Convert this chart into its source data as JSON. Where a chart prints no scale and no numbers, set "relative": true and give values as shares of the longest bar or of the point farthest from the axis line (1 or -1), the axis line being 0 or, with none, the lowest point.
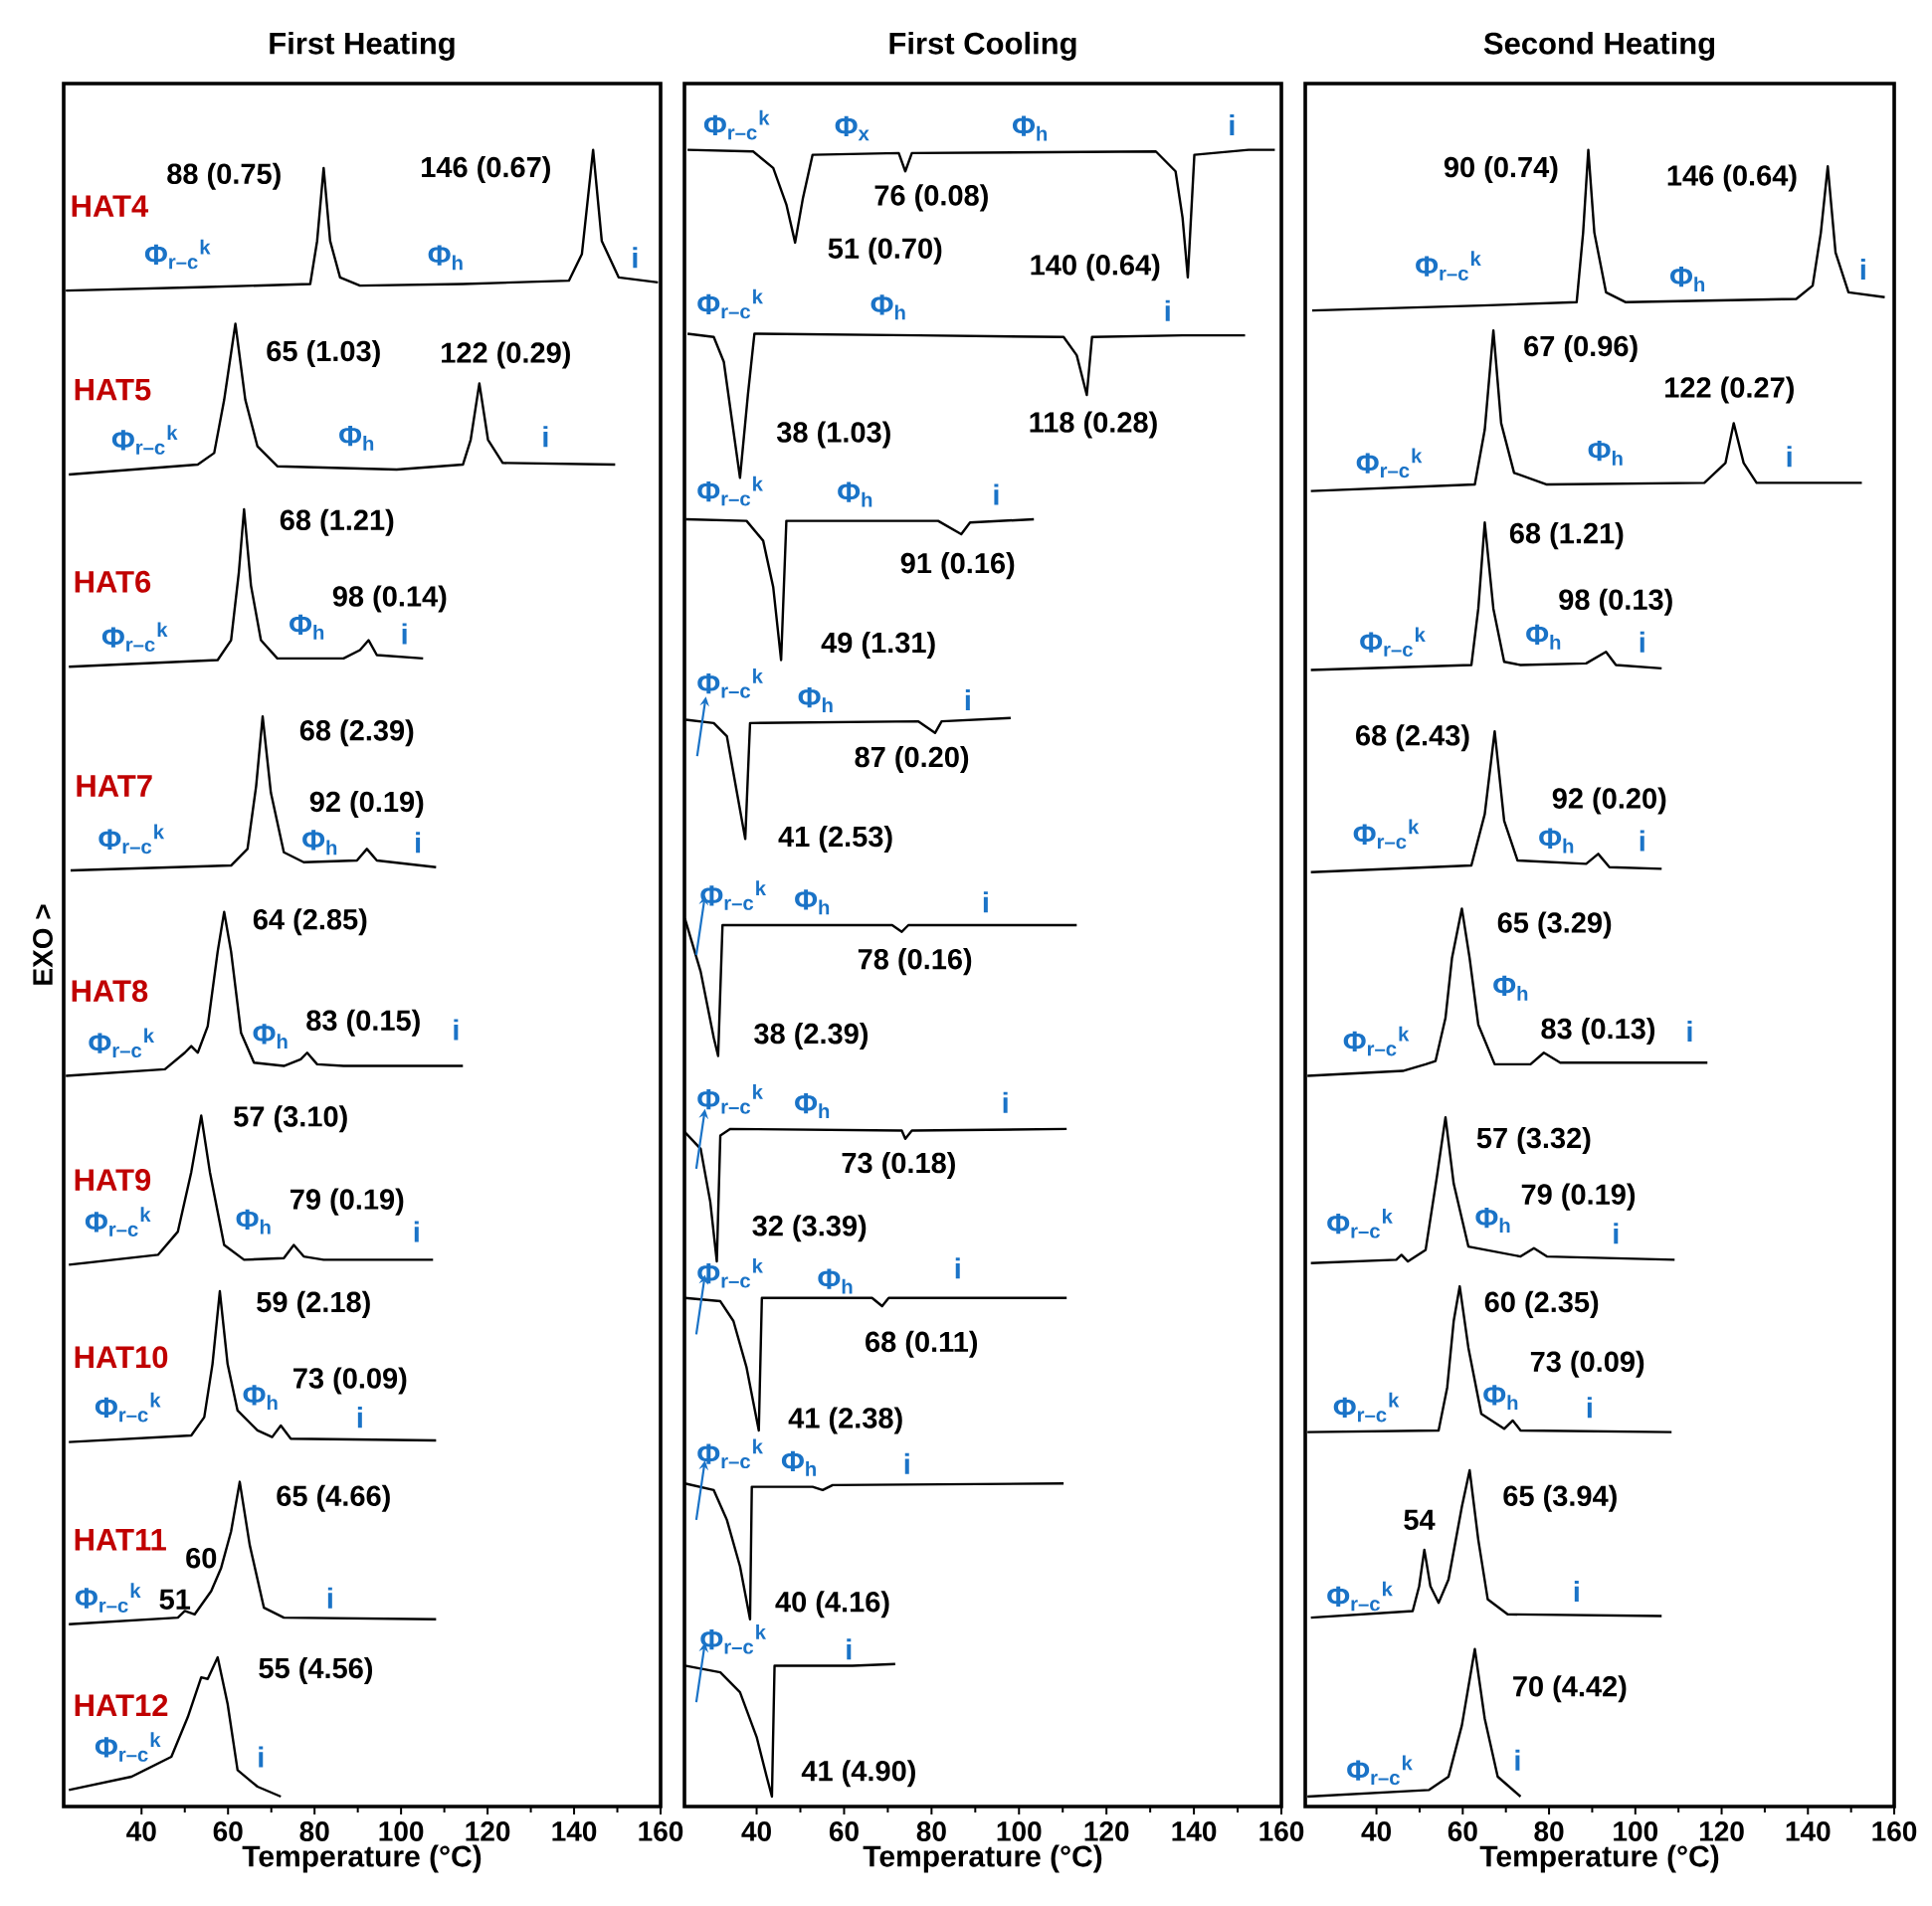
{
  "chart_data": [
    {
      "type": "line",
      "title": "First Heating",
      "xlabel": "Temperature (°C)",
      "ylabel": "EXO >",
      "relative": true,
      "xlim": [
        22,
        160
      ],
      "xticks": [
        40,
        60,
        80,
        100,
        120,
        140,
        160
      ],
      "series": [
        {
          "name": "HAT4",
          "color": "#000000",
          "x": [
            22.5,
            53.0,
            79.0,
            80.6,
            82.1,
            83.6,
            85.9,
            90.5,
            114.3,
            138.8,
            141.8,
            144.4,
            146.4,
            150.3,
            159.4
          ],
          "values": [
            0.915,
            0.917,
            0.919,
            0.945,
            0.989,
            0.945,
            0.923,
            0.918,
            0.919,
            0.921,
            0.937,
            1.0,
            0.945,
            0.923,
            0.92
          ]
        },
        {
          "name": "HAT5",
          "color": "#000000",
          "x": [
            23.2,
            53.0,
            56.8,
            59.1,
            61.7,
            64.0,
            66.8,
            71.4,
            99.0,
            114.3,
            116.1,
            118.1,
            120.1,
            123.5,
            149.5
          ],
          "values": [
            0.804,
            0.81,
            0.817,
            0.849,
            0.895,
            0.849,
            0.821,
            0.809,
            0.807,
            0.81,
            0.825,
            0.859,
            0.825,
            0.811,
            0.81
          ]
        },
        {
          "name": "HAT6",
          "color": "#000000",
          "x": [
            23.2,
            57.6,
            60.7,
            62.5,
            63.7,
            65.3,
            67.6,
            71.4,
            86.7,
            90.5,
            92.5,
            94.4,
            105.1
          ],
          "values": [
            0.688,
            0.692,
            0.704,
            0.745,
            0.783,
            0.737,
            0.704,
            0.693,
            0.693,
            0.698,
            0.704,
            0.695,
            0.693
          ]
        },
        {
          "name": "HAT7",
          "color": "#000000",
          "x": [
            23.6,
            60.7,
            64.5,
            66.5,
            68.0,
            69.9,
            72.9,
            77.5,
            89.8,
            92.1,
            94.4,
            108.1
          ],
          "values": [
            0.565,
            0.568,
            0.578,
            0.616,
            0.658,
            0.612,
            0.576,
            0.57,
            0.571,
            0.578,
            0.571,
            0.567
          ]
        },
        {
          "name": "HAT8",
          "color": "#000000",
          "x": [
            22.5,
            45.4,
            50.0,
            51.5,
            53.0,
            55.3,
            57.6,
            59.1,
            60.7,
            63.0,
            66.0,
            72.9,
            76.8,
            78.3,
            80.6,
            86.7,
            114.3
          ],
          "values": [
            0.441,
            0.445,
            0.455,
            0.459,
            0.455,
            0.471,
            0.516,
            0.54,
            0.516,
            0.467,
            0.449,
            0.447,
            0.451,
            0.455,
            0.448,
            0.447,
            0.447
          ]
        },
        {
          "name": "HAT9",
          "color": "#000000",
          "x": [
            23.2,
            43.8,
            48.4,
            51.5,
            53.8,
            55.8,
            59.1,
            63.7,
            72.9,
            75.2,
            77.5,
            82.1,
            107.4
          ],
          "values": [
            0.327,
            0.333,
            0.347,
            0.383,
            0.417,
            0.383,
            0.339,
            0.33,
            0.331,
            0.339,
            0.332,
            0.33,
            0.33
          ]
        },
        {
          "name": "HAT10",
          "color": "#000000",
          "x": [
            23.2,
            51.5,
            54.5,
            56.4,
            58.1,
            59.9,
            62.2,
            66.8,
            70.2,
            72.2,
            74.5,
            108.1
          ],
          "values": [
            0.22,
            0.224,
            0.235,
            0.267,
            0.311,
            0.267,
            0.239,
            0.227,
            0.223,
            0.23,
            0.222,
            0.221
          ]
        },
        {
          "name": "HAT11",
          "color": "#000000",
          "x": [
            23.2,
            48.4,
            50.0,
            52.3,
            56.1,
            58.4,
            60.7,
            62.7,
            65.0,
            68.3,
            72.9,
            108.1
          ],
          "values": [
            0.11,
            0.114,
            0.118,
            0.116,
            0.13,
            0.144,
            0.166,
            0.196,
            0.158,
            0.12,
            0.114,
            0.113
          ]
        },
        {
          "name": "HAT12",
          "color": "#000000",
          "x": [
            23.2,
            37.7,
            46.9,
            50.7,
            53.8,
            55.3,
            57.6,
            59.9,
            62.2,
            66.8,
            72.2
          ],
          "values": [
            0.01,
            0.018,
            0.03,
            0.054,
            0.078,
            0.077,
            0.09,
            0.062,
            0.022,
            0.012,
            0.006
          ]
        }
      ],
      "annotations": [
        "88 (0.75)",
        "146 (0.67)",
        "Φ$_{r–c}$$^{k}$",
        "Φ$_{h}$",
        "i",
        "65 (1.03)",
        "122 (0.29)",
        "Φ$_{r–c}$$^{k}$",
        "Φ$_{h}$",
        "i",
        "68 (1.21)",
        "98 (0.14)",
        "Φ$_{r–c}$$^{k}$",
        "Φ$_{h}$",
        "i",
        "68 (2.39)",
        "92 (0.19)",
        "Φ$_{r–c}$$^{k}$",
        "Φ$_{h}$",
        "i",
        "64 (2.85)",
        "Φ$_{r–c}$$^{k}$",
        "Φ$_{h}$",
        "83 (0.15)",
        "i",
        "57 (3.10)",
        "Φ$_{r–c}$$^{k}$",
        "Φ$_{h}$",
        "79 (0.19)",
        "i",
        "59 (2.18)",
        "73 (0.09)",
        "Φ$_{r–c}$$^{k}$",
        "Φ$_{h}$",
        "i",
        "65 (4.66)",
        "60",
        "Φ$_{r–c}$$^{k}$",
        "51",
        "i",
        "55 (4.56)",
        "Φ$_{r–c}$$^{k}$",
        "i"
      ]
    },
    {
      "type": "line",
      "title": "First Cooling",
      "xlabel": "Temperature (°C)",
      "relative": true,
      "xlim": [
        23.5,
        160
      ],
      "xticks": [
        40,
        60,
        80,
        100,
        120,
        140,
        160
      ],
      "series": [
        {
          "color": "#000000",
          "x": [
            24.2,
            39.2,
            43.8,
            46.8,
            48.8,
            50.6,
            52.8,
            72.5,
            74.0,
            75.5,
            131.3,
            135.8,
            137.4,
            138.6,
            140.1,
            152.5,
            158.5
          ],
          "values": [
            1.0,
            0.999,
            0.989,
            0.967,
            0.944,
            0.971,
            0.997,
            0.998,
            0.987,
            0.998,
            0.999,
            0.987,
            0.959,
            0.923,
            0.997,
            1.0,
            1.0
          ]
        },
        {
          "color": "#000000",
          "x": [
            24.2,
            30.2,
            32.5,
            34.4,
            36.2,
            38.0,
            39.5,
            77.0,
            110.2,
            113.2,
            115.5,
            116.7,
            137.4,
            151.7
          ],
          "values": [
            0.889,
            0.887,
            0.872,
            0.836,
            0.802,
            0.852,
            0.889,
            0.888,
            0.887,
            0.876,
            0.852,
            0.887,
            0.888,
            0.888
          ]
        },
        {
          "color": "#000000",
          "x": [
            23.8,
            37.7,
            41.5,
            43.8,
            45.6,
            46.8,
            81.5,
            86.8,
            88.8,
            103.4
          ],
          "values": [
            0.777,
            0.776,
            0.764,
            0.736,
            0.692,
            0.776,
            0.776,
            0.768,
            0.775,
            0.777
          ]
        },
        {
          "color": "#000000",
          "x": [
            23.8,
            30.2,
            33.2,
            35.5,
            37.4,
            38.5,
            77.0,
            80.8,
            82.3,
            98.1
          ],
          "values": [
            0.656,
            0.654,
            0.646,
            0.612,
            0.584,
            0.654,
            0.655,
            0.648,
            0.655,
            0.657
          ]
        },
        {
          "color": "#000000",
          "x": [
            23.6,
            27.2,
            30.2,
            31.2,
            32.2,
            71.0,
            73.2,
            74.7,
            113.2
          ],
          "values": [
            0.536,
            0.504,
            0.464,
            0.453,
            0.532,
            0.532,
            0.528,
            0.532,
            0.532
          ]
        },
        {
          "color": "#000000",
          "x": [
            23.6,
            27.2,
            29.4,
            30.9,
            31.7,
            34.0,
            73.2,
            74.0,
            75.5,
            110.9
          ],
          "values": [
            0.407,
            0.397,
            0.365,
            0.329,
            0.405,
            0.409,
            0.408,
            0.403,
            0.408,
            0.409
          ]
        },
        {
          "color": "#000000",
          "x": [
            23.6,
            31.7,
            34.7,
            37.7,
            40.5,
            41.2,
            66.4,
            68.7,
            70.2,
            110.9
          ],
          "values": [
            0.307,
            0.305,
            0.293,
            0.265,
            0.227,
            0.307,
            0.307,
            0.302,
            0.307,
            0.307
          ]
        },
        {
          "color": "#000000",
          "x": [
            23.6,
            30.2,
            33.2,
            36.2,
            38.5,
            38.9,
            52.8,
            55.1,
            57.4,
            110.2
          ],
          "values": [
            0.195,
            0.191,
            0.173,
            0.145,
            0.113,
            0.193,
            0.193,
            0.191,
            0.194,
            0.195
          ]
        },
        {
          "color": "#000000",
          "x": [
            23.6,
            31.7,
            36.2,
            40.0,
            42.3,
            43.5,
            44.1,
            61.9,
            71.7
          ],
          "values": [
            0.085,
            0.081,
            0.069,
            0.042,
            0.018,
            0.006,
            0.085,
            0.085,
            0.086
          ]
        }
      ],
      "annotations": [
        "Φ$_{r–c}$$^{k}$",
        "Φ$_{x}$",
        "Φ$_{h}$",
        "i",
        "76 (0.08)",
        "51 (0.70)",
        "140 (0.64)",
        "Φ$_{r–c}$$^{k}$",
        "Φ$_{h}$",
        "i",
        "38 (1.03)",
        "118 (0.28)",
        "Φ$_{r–c}$$^{k}$",
        "Φ$_{h}$",
        "i",
        "91 (0.16)",
        "49 (1.31)",
        "Φ$_{r–c}$$^{k}$",
        "Φ$_{h}$",
        "i",
        "87 (0.20)",
        "41 (2.53)",
        "Φ$_{r–c}$$^{k}$",
        "Φ$_{h}$",
        "i",
        "78 (0.16)",
        "38 (2.39)",
        "Φ$_{r–c}$$^{k}$",
        "Φ$_{h}$",
        "i",
        "73 (0.18)",
        "32 (3.39)",
        "Φ$_{r–c}$$^{k}$",
        "Φ$_{h}$",
        "i",
        "68 (0.11)",
        "41 (2.38)",
        "Φ$_{r–c}$$^{k}$",
        "Φ$_{h}$",
        "i",
        "40 (4.16)",
        "Φ$_{r–c}$$^{k}$",
        "i",
        "41 (4.90)"
      ]
    },
    {
      "type": "line",
      "title": "Second Heating",
      "xlabel": "Temperature (°C)",
      "relative": true,
      "xlim": [
        23.5,
        160
      ],
      "xticks": [
        40,
        60,
        80,
        100,
        120,
        140,
        160
      ],
      "series": [
        {
          "color": "#000000",
          "x": [
            25.1,
            64.3,
            86.4,
            87.9,
            89.1,
            90.5,
            93.2,
            97.8,
            137.3,
            141.1,
            143.0,
            144.6,
            146.4,
            149.4,
            157.8
          ],
          "values": [
            0.903,
            0.906,
            0.908,
            0.95,
            1.0,
            0.95,
            0.914,
            0.908,
            0.91,
            0.918,
            0.95,
            0.99,
            0.938,
            0.914,
            0.911
          ]
        },
        {
          "color": "#000000",
          "x": [
            24.8,
            62.8,
            65.1,
            67.1,
            68.9,
            71.9,
            79.5,
            116.0,
            120.9,
            122.8,
            125.1,
            128.1,
            152.5
          ],
          "values": [
            0.794,
            0.798,
            0.831,
            0.891,
            0.835,
            0.805,
            0.798,
            0.799,
            0.811,
            0.835,
            0.811,
            0.799,
            0.799
          ]
        },
        {
          "color": "#000000",
          "x": [
            24.8,
            62.0,
            63.6,
            65.1,
            67.1,
            69.6,
            73.4,
            88.6,
            93.2,
            95.5,
            106.1
          ],
          "values": [
            0.686,
            0.689,
            0.723,
            0.775,
            0.723,
            0.691,
            0.689,
            0.69,
            0.697,
            0.689,
            0.687
          ]
        },
        {
          "color": "#000000",
          "x": [
            24.8,
            62.0,
            65.1,
            67.4,
            69.6,
            72.7,
            88.6,
            91.4,
            94.0,
            106.1
          ],
          "values": [
            0.564,
            0.568,
            0.599,
            0.649,
            0.595,
            0.571,
            0.569,
            0.575,
            0.567,
            0.566
          ]
        },
        {
          "color": "#000000",
          "x": [
            24.0,
            46.1,
            51.4,
            53.7,
            56.0,
            57.5,
            59.8,
            61.6,
            63.6,
            67.4,
            75.7,
            78.8,
            82.6,
            116.7
          ],
          "values": [
            0.441,
            0.444,
            0.448,
            0.45,
            0.476,
            0.512,
            0.542,
            0.512,
            0.472,
            0.448,
            0.448,
            0.455,
            0.449,
            0.449
          ]
        },
        {
          "color": "#000000",
          "x": [
            24.8,
            44.6,
            45.8,
            47.3,
            51.4,
            54.0,
            56.0,
            57.9,
            61.3,
            73.4,
            76.5,
            79.5,
            109.1
          ],
          "values": [
            0.328,
            0.33,
            0.333,
            0.329,
            0.336,
            0.38,
            0.416,
            0.376,
            0.338,
            0.332,
            0.337,
            0.332,
            0.33
          ]
        },
        {
          "color": "#000000",
          "x": [
            24.0,
            54.4,
            56.4,
            57.9,
            59.3,
            61.3,
            64.3,
            69.6,
            71.6,
            73.4,
            108.4
          ],
          "values": [
            0.226,
            0.227,
            0.253,
            0.293,
            0.314,
            0.277,
            0.237,
            0.228,
            0.233,
            0.227,
            0.226
          ]
        },
        {
          "color": "#000000",
          "x": [
            24.8,
            48.4,
            49.9,
            51.1,
            52.5,
            54.4,
            56.7,
            59.8,
            61.6,
            63.6,
            65.8,
            70.4,
            106.1
          ],
          "values": [
            0.114,
            0.118,
            0.133,
            0.155,
            0.133,
            0.123,
            0.137,
            0.181,
            0.203,
            0.161,
            0.125,
            0.116,
            0.115
          ]
        },
        {
          "color": "#000000",
          "x": [
            24.0,
            52.2,
            56.7,
            59.8,
            62.8,
            65.1,
            68.1,
            73.4
          ],
          "values": [
            0.006,
            0.01,
            0.018,
            0.049,
            0.095,
            0.053,
            0.018,
            0.006
          ]
        }
      ],
      "annotations": [
        "90 (0.74)",
        "146 (0.64)",
        "Φ$_{r–c}$$^{k}$",
        "Φ$_{h}$",
        "i",
        "67 (0.96)",
        "122 (0.27)",
        "Φ$_{r–c}$$^{k}$",
        "Φ$_{h}$",
        "i",
        "68 (1.21)",
        "98 (0.13)",
        "Φ$_{r–c}$$^{k}$",
        "Φ$_{h}$",
        "i",
        "68 (2.43)",
        "92 (0.20)",
        "Φ$_{r–c}$$^{k}$",
        "Φ$_{h}$",
        "i",
        "65 (3.29)",
        "Φ$_{h}$",
        "Φ$_{r–c}$$^{k}$",
        "83 (0.13)",
        "i",
        "57 (3.32)",
        "79 (0.19)",
        "Φ$_{r–c}$$^{k}$",
        "Φ$_{h}$",
        "i",
        "60 (2.35)",
        "73 (0.09)",
        "Φ$_{r–c}$$^{k}$",
        "Φ$_{h}$",
        "i",
        "54",
        "65 (3.94)",
        "Φ$_{r–c}$$^{k}$",
        "i",
        "70 (4.42)",
        "Φ$_{r–c}$$^{k}$",
        "i"
      ]
    }
  ]
}
